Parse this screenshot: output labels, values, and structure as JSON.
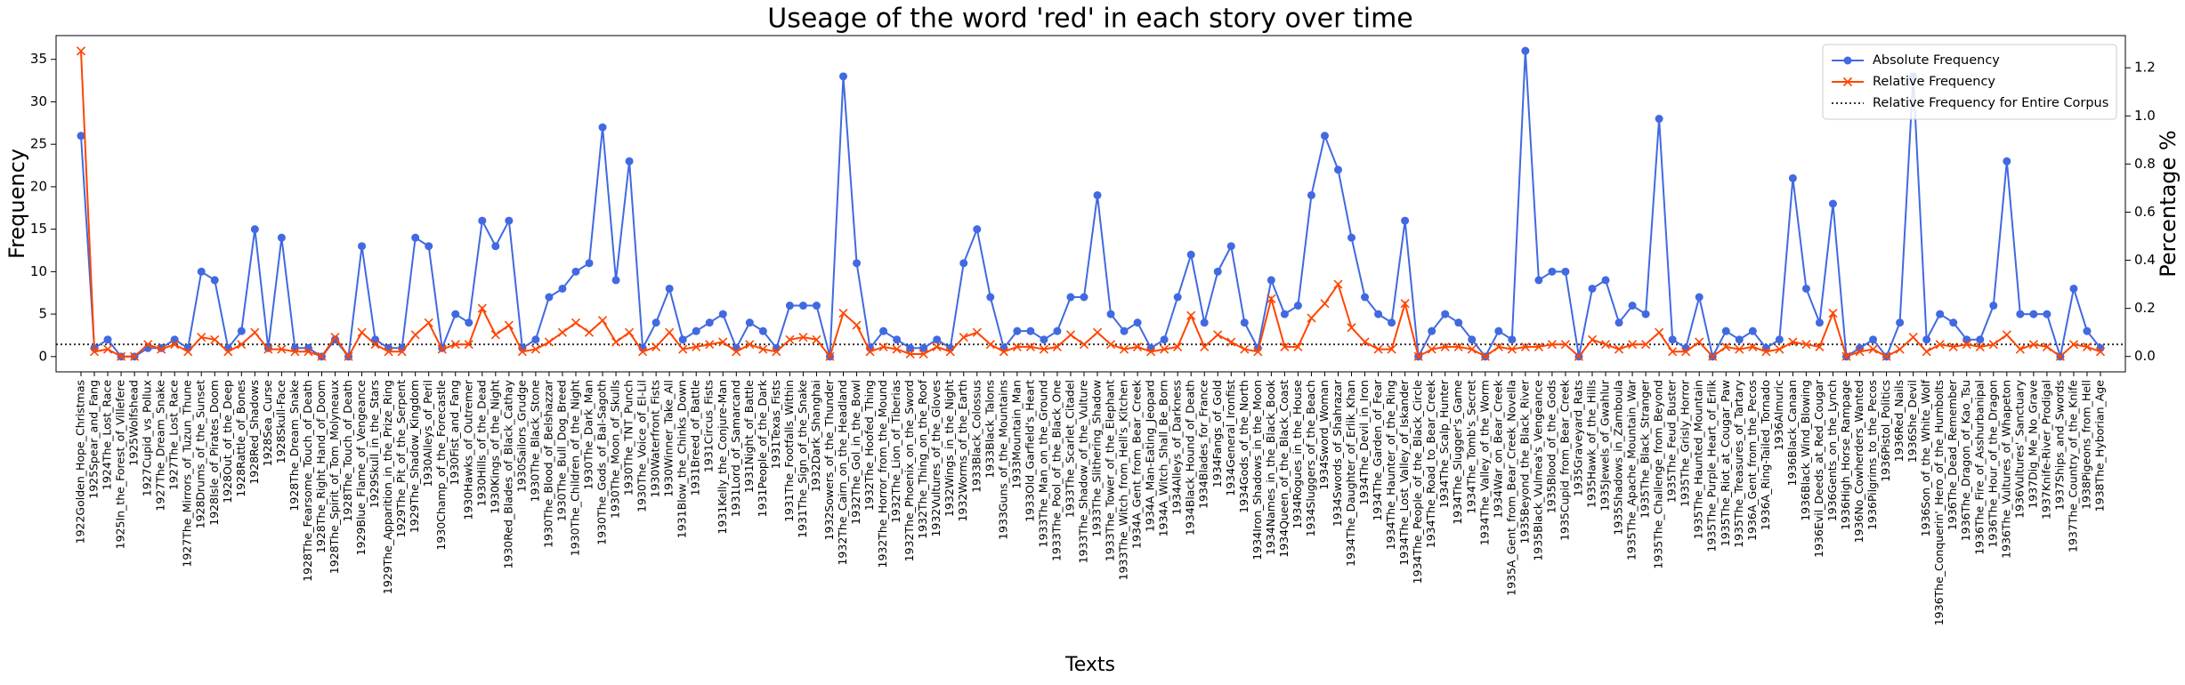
{
  "chart_data": {
    "type": "line",
    "title": "Useage of the word 'red' in each story over time",
    "xlabel": "Texts",
    "ylabel": "Frequency",
    "y2label": "Percentage %",
    "legend": "upper right",
    "categories": [
      "1922Golden_Hope_Christmas",
      "1925Spear_and_Fang",
      "1924The_Lost_Race",
      "1925In_the_Forest_of_Villefere",
      "1925Wolfshead",
      "1927Cupid_vs_Pollux",
      "1927The_Dream_Snake",
      "1927The_Lost_Race",
      "1927The_Mirrors_of_Tuzun_Thune",
      "1928Drums_of_the_Sunset",
      "1928Isle_of_Pirates_Doom",
      "1928Out_of_the_Deep",
      "1928Rattle_of_Bones",
      "1928Red_Shadows",
      "1928Sea_Curse",
      "1928Skull-Face",
      "1928The_Dream_Snake",
      "1928The_Fearsome_Touch_of_Death",
      "1928The_Right_Hand_of_Doom",
      "1928The_Spirit_of_Tom_Molyneaux",
      "1928The_Touch_of_Death",
      "1929Blue_Flame_of_Vengeance",
      "1929Skull_in_the_Stars",
      "1929The_Apparition_in_the_Prize_Ring",
      "1929The_Pit_of_the_Serpent",
      "1929The_Shadow_Kingdom",
      "1930Alleys_of_Peril",
      "1930Champ_of_the_Forecastle",
      "1930Fist_and_Fang",
      "1930Hawks_of_Outremer",
      "1930Hills_of_the_Dead",
      "1930Kings_of_the_Night",
      "1930Red_Blades_of_Black_Cathay",
      "1930Sailors_Grudge",
      "1930The_Black_Stone",
      "1930The_Blood_of_Belshazzar",
      "1930The_Bull_Dog_Breed",
      "1930The_Children_of_the_Night",
      "1930The_Dark_Man",
      "1930The_Gods_of_Bal-Sagoth",
      "1930The_Moon_of_Skulls",
      "1930The_TNT_Punch",
      "1930The_Voice_of_El-Lil",
      "1930Waterfront_Fists",
      "1930Winner_Take_All",
      "1931Blow_the_Chinks_Down",
      "1931Breed_of_Battle",
      "1931Circus_Fists",
      "1931Kelly_the_Conjure-Man",
      "1931Lord_of_Samarcand",
      "1931Night_of_Battle",
      "1931People_of_the_Dark",
      "1931Texas_Fists",
      "1931The_Footfalls_Within",
      "1931The_Sign_of_the_Snake",
      "1932Dark_Shanghai",
      "1932Sowers_of_the_Thunder",
      "1932The_Cairn_on_the_Headland",
      "1932The_Gol_in_the_Bowl",
      "1932The_Hoofed_Thing",
      "1932The_Horror_from_the_Mound",
      "1932The_Lion_of_Tiberias",
      "1932The_Phoenix_on_the_Sword",
      "1932The_Thing_on_the_Roof",
      "1932Vultures_of_the_Gloves",
      "1932Wings_in_the_Night",
      "1932Worms_of_the_Earth",
      "1933Black_Colossus",
      "1933Black_Talons",
      "1933Guns_of_the_Mountains",
      "1933Mountain_Man",
      "1933Old_Garfield's_Heart",
      "1933The_Man_on_the_Ground",
      "1933The_Pool_of_the_Black_One",
      "1933The_Scarlet_Citadel",
      "1933The_Shadow_of_the_Vulture",
      "1933The_Slithering_Shadow",
      "1933The_Tower_of_the_Elephant",
      "1933The_Witch_from_Hell's_Kitchen",
      "1934A_Gent_from_Bear_Creek",
      "1934A_Man-Eating_Jeopard",
      "1934A_Witch_Shall_Be_Born",
      "1934Alleys_of_Darkness",
      "1934Black_Hound_of_Death",
      "1934Blades_for_France",
      "1934Fangs_of_Gold",
      "1934General_Ironfist",
      "1934Gods_of_the_North",
      "1934Iron_Shadows_in_the_Moon",
      "1934Names_in_the_Black_Book",
      "1934Queen_of_the_Black_Coast",
      "1934Rogues_in_the_House",
      "1934Sluggers_of_the_Beach",
      "1934Sword_Woman",
      "1934Swords_of_Shahrazar",
      "1934The_Daughter_of_Erlik_Khan",
      "1934The_Devil_in_Iron",
      "1934The_Garden_of_Fear",
      "1934The_Haunter_of_the_Ring",
      "1934The_Lost_Valley_of_Iskander",
      "1934The_People_of_the_Black_Circle",
      "1934The_Road_to_Bear_Creek",
      "1934The_Scalp_Hunter",
      "1934The_Slugger's_Game",
      "1934The_Tomb's_Secret",
      "1934The_Valley_of_the_Worm",
      "1934War_on_Bear_Creek",
      "1935A_Gent_from_Bear_Creek_Novella",
      "1935Beyond_the_Black_River",
      "1935Black_Vulmea's_Vengeance",
      "1935Blood_of_the_Gods",
      "1935Cupid_from_Bear_Creek",
      "1935Graveyard_Rats",
      "1935Hawk_of_the_Hills",
      "1935Jewels_of_Gwahlur",
      "1935Shadows_in_Zamboula",
      "1935The_Apache_Mountain_War",
      "1935The_Black_Stranger",
      "1935The_Challenge_from_Beyond",
      "1935The_Feud_Buster",
      "1935The_Grisly_Horror",
      "1935The_Haunted_Mountain",
      "1935The_Purple_Heart_of_Erlik",
      "1935The_Riot_at_Cougar_Paw",
      "1935The_Treasures_of_Tartary",
      "1936A_Gent_from_the_Pecos",
      "1936A_Ring-Tailed_Tornado",
      "1936Almuric",
      "1936Black_Canaan",
      "1936Black_Wind_Blowing",
      "1936Evil_Deeds_at_Red_Cougar",
      "1936Gents_on_the_Lynch",
      "1936High_Horse_Rampage",
      "1936No_Cowherders_Wanted",
      "1936Pilgrims_to_the_Pecos",
      "1936Pistol_Politics",
      "1936Red_Nails",
      "1936She_Devil",
      "1936Son_of_the_White_Wolf",
      "1936The_Conquerin'_Hero_of_the_Humbolts",
      "1936The_Dead_Remember",
      "1936The_Dragon_of_Kao_Tsu",
      "1936The_Fire_of_Asshurbanipal",
      "1936The_Hour_of_the_Dragon",
      "1936The_Vultures_of_Whapeton",
      "1936Vultures'_Sanctuary",
      "1937Dig_Me_No_Grave",
      "1937Knife-River_Prodigal",
      "1937Ships_and_Swords",
      "1937The_Country_of_the_Knife",
      "1938Pigeons_from_Hell",
      "1938The_Hyborian_Age"
    ],
    "series": [
      {
        "name": "Absolute Frequency",
        "color": "#4169e1",
        "marker": "o",
        "values": [
          26,
          1,
          2,
          0,
          0,
          1,
          1,
          2,
          1,
          10,
          9,
          1,
          3,
          15,
          1,
          14,
          1,
          1,
          0,
          2,
          0,
          13,
          2,
          1,
          1,
          14,
          13,
          1,
          5,
          4,
          16,
          13,
          16,
          1,
          2,
          7,
          8,
          10,
          11,
          27,
          9,
          23,
          1,
          4,
          8,
          2,
          3,
          4,
          5,
          1,
          4,
          3,
          1,
          6,
          6,
          6,
          0,
          33,
          11,
          1,
          3,
          2,
          1,
          1,
          2,
          1,
          11,
          15,
          7,
          1,
          3,
          3,
          2,
          3,
          7,
          7,
          19,
          5,
          3,
          4,
          1,
          2,
          7,
          12,
          4,
          10,
          13,
          4,
          1,
          9,
          5,
          6,
          19,
          26,
          22,
          14,
          7,
          5,
          4,
          16,
          0,
          3,
          5,
          4,
          2,
          0,
          3,
          2,
          36,
          9,
          10,
          10,
          0,
          8,
          9,
          4,
          6,
          5,
          28,
          2,
          1,
          7,
          0,
          3,
          2,
          3,
          1,
          2,
          21,
          8,
          4,
          18,
          0,
          1,
          2,
          0,
          4,
          33,
          2,
          5,
          4,
          2,
          2,
          6,
          23,
          5,
          5,
          5,
          0,
          8,
          3,
          1
        ]
      },
      {
        "name": "Relative Frequency",
        "color": "#ff4500",
        "marker": "x",
        "axis": "y2",
        "values": [
          1.27,
          0.02,
          0.03,
          0.0,
          0.0,
          0.05,
          0.03,
          0.05,
          0.02,
          0.08,
          0.07,
          0.02,
          0.05,
          0.1,
          0.03,
          0.03,
          0.02,
          0.02,
          0.0,
          0.08,
          0.0,
          0.1,
          0.05,
          0.02,
          0.02,
          0.09,
          0.14,
          0.03,
          0.05,
          0.05,
          0.2,
          0.09,
          0.13,
          0.02,
          0.03,
          0.06,
          0.1,
          0.14,
          0.1,
          0.15,
          0.06,
          0.1,
          0.02,
          0.04,
          0.1,
          0.03,
          0.04,
          0.05,
          0.06,
          0.02,
          0.05,
          0.03,
          0.02,
          0.07,
          0.08,
          0.07,
          0.0,
          0.18,
          0.13,
          0.02,
          0.04,
          0.03,
          0.01,
          0.01,
          0.04,
          0.02,
          0.08,
          0.1,
          0.05,
          0.02,
          0.04,
          0.04,
          0.03,
          0.04,
          0.09,
          0.05,
          0.1,
          0.05,
          0.03,
          0.04,
          0.02,
          0.03,
          0.04,
          0.17,
          0.04,
          0.09,
          0.06,
          0.03,
          0.02,
          0.24,
          0.04,
          0.04,
          0.16,
          0.22,
          0.3,
          0.12,
          0.06,
          0.03,
          0.03,
          0.22,
          0.0,
          0.03,
          0.04,
          0.04,
          0.03,
          0.0,
          0.04,
          0.03,
          0.04,
          0.04,
          0.05,
          0.05,
          0.0,
          0.07,
          0.05,
          0.03,
          0.05,
          0.05,
          0.1,
          0.02,
          0.02,
          0.06,
          0.0,
          0.04,
          0.03,
          0.04,
          0.02,
          0.03,
          0.06,
          0.05,
          0.04,
          0.18,
          0.0,
          0.02,
          0.03,
          0.0,
          0.03,
          0.08,
          0.02,
          0.05,
          0.04,
          0.05,
          0.04,
          0.05,
          0.09,
          0.03,
          0.05,
          0.04,
          0.0,
          0.05,
          0.04,
          0.02
        ]
      }
    ],
    "hlines": [
      {
        "name": "Relative Frequency for Entire Corpus",
        "value": 0.05,
        "axis": "y2",
        "color": "#333333",
        "style": "dotted"
      }
    ],
    "ylim": [
      -1.8,
      37.8
    ],
    "yticks": [
      0,
      5,
      10,
      15,
      20,
      25,
      30,
      35
    ],
    "y2lim": [
      -0.064,
      1.334
    ],
    "y2ticks": [
      {
        "value": 0,
        "label": "0.0"
      },
      0.2,
      0.4,
      0.6,
      0.8,
      {
        "value": 1,
        "label": "1.0"
      },
      1.2
    ]
  }
}
